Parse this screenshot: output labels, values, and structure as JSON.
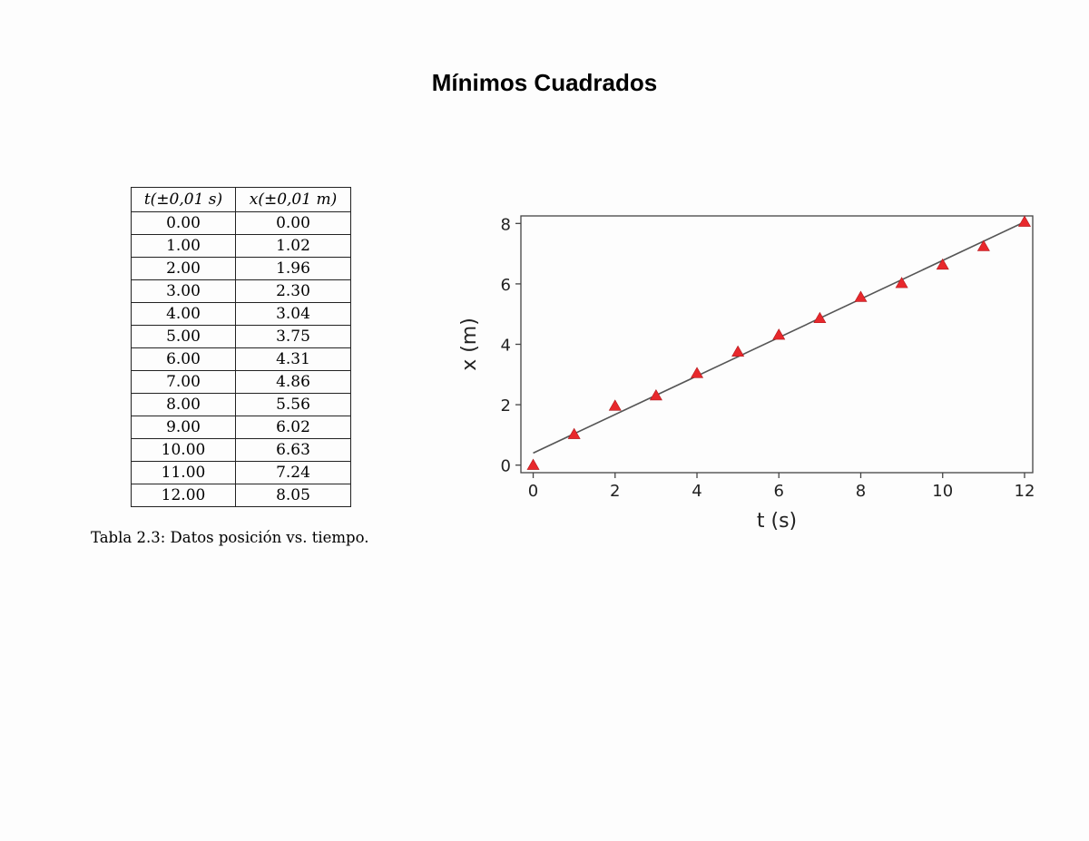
{
  "title": "Mínimos Cuadrados",
  "table": {
    "headers": [
      "t(±0,01 s)",
      "x(±0,01 m)"
    ],
    "rows": [
      [
        "0.00",
        "0.00"
      ],
      [
        "1.00",
        "1.02"
      ],
      [
        "2.00",
        "1.96"
      ],
      [
        "3.00",
        "2.30"
      ],
      [
        "4.00",
        "3.04"
      ],
      [
        "5.00",
        "3.75"
      ],
      [
        "6.00",
        "4.31"
      ],
      [
        "7.00",
        "4.86"
      ],
      [
        "8.00",
        "5.56"
      ],
      [
        "9.00",
        "6.02"
      ],
      [
        "10.00",
        "6.63"
      ],
      [
        "11.00",
        "7.24"
      ],
      [
        "12.00",
        "8.05"
      ]
    ],
    "caption": "Tabla 2.3: Datos posición vs. tiempo."
  },
  "chart_data": {
    "type": "scatter",
    "xlabel": "t (s)",
    "ylabel": "x (m)",
    "xlim": [
      -0.3,
      12.2
    ],
    "ylim": [
      -0.25,
      8.25
    ],
    "xticks": [
      0,
      2,
      4,
      6,
      8,
      10,
      12
    ],
    "yticks": [
      0,
      2,
      4,
      6,
      8
    ],
    "grid": false,
    "legend": "none",
    "points": {
      "x": [
        0,
        1,
        2,
        3,
        4,
        5,
        6,
        7,
        8,
        9,
        10,
        11,
        12
      ],
      "y": [
        0.0,
        1.02,
        1.96,
        2.3,
        3.04,
        3.75,
        4.31,
        4.86,
        5.56,
        6.02,
        6.63,
        7.24,
        8.05
      ],
      "marker": "triangle",
      "color": "#e8282c"
    },
    "fit_line": {
      "x": [
        0,
        12
      ],
      "y": [
        0.4,
        8.05
      ],
      "color": "#555555"
    }
  }
}
